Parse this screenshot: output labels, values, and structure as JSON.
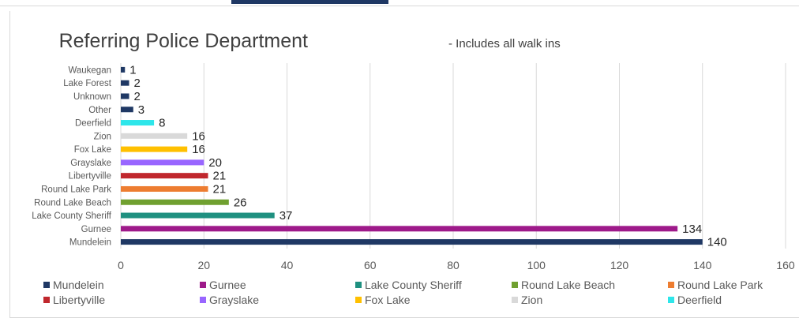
{
  "chart_data": {
    "type": "bar",
    "orientation": "horizontal",
    "title": "Referring Police Department",
    "subtitle": "- Includes all walk ins",
    "xlabel": "",
    "ylabel": "",
    "xlim": [
      0,
      160
    ],
    "xticks": [
      0,
      20,
      40,
      60,
      80,
      100,
      120,
      140,
      160
    ],
    "grid": "vertical",
    "legend_position": "bottom",
    "data_labels": true,
    "bars": [
      {
        "label": "Waukegan",
        "value": 1,
        "color": "#1f3864"
      },
      {
        "label": "Lake Forest",
        "value": 2,
        "color": "#1f3864"
      },
      {
        "label": "Unknown",
        "value": 2,
        "color": "#1f3864"
      },
      {
        "label": "Other",
        "value": 3,
        "color": "#1f3864"
      },
      {
        "label": "Deerfield",
        "value": 8,
        "color": "#2ee6ea"
      },
      {
        "label": "Zion",
        "value": 16,
        "color": "#d9d9d9"
      },
      {
        "label": "Fox Lake",
        "value": 16,
        "color": "#ffc000"
      },
      {
        "label": "Grayslake",
        "value": 20,
        "color": "#9966ff"
      },
      {
        "label": "Libertyville",
        "value": 21,
        "color": "#c0272d"
      },
      {
        "label": "Round Lake Park",
        "value": 21,
        "color": "#ed7d31"
      },
      {
        "label": "Round Lake Beach",
        "value": 26,
        "color": "#70a030"
      },
      {
        "label": "Lake County Sheriff",
        "value": 37,
        "color": "#1f9080"
      },
      {
        "label": "Gurnee",
        "value": 134,
        "color": "#9e1a8a"
      },
      {
        "label": "Mundelein",
        "value": 140,
        "color": "#1f3864"
      }
    ],
    "legend": [
      {
        "label": "Mundelein",
        "color": "#1f3864"
      },
      {
        "label": "Gurnee",
        "color": "#9e1a8a"
      },
      {
        "label": "Lake County Sheriff",
        "color": "#1f9080"
      },
      {
        "label": "Round Lake Beach",
        "color": "#70a030"
      },
      {
        "label": "Round Lake Park",
        "color": "#ed7d31"
      },
      {
        "label": "Libertyville",
        "color": "#c0272d"
      },
      {
        "label": "Grayslake",
        "color": "#9966ff"
      },
      {
        "label": "Fox Lake",
        "color": "#ffc000"
      },
      {
        "label": "Zion",
        "color": "#d9d9d9"
      },
      {
        "label": "Deerfield",
        "color": "#2ee6ea"
      }
    ]
  }
}
